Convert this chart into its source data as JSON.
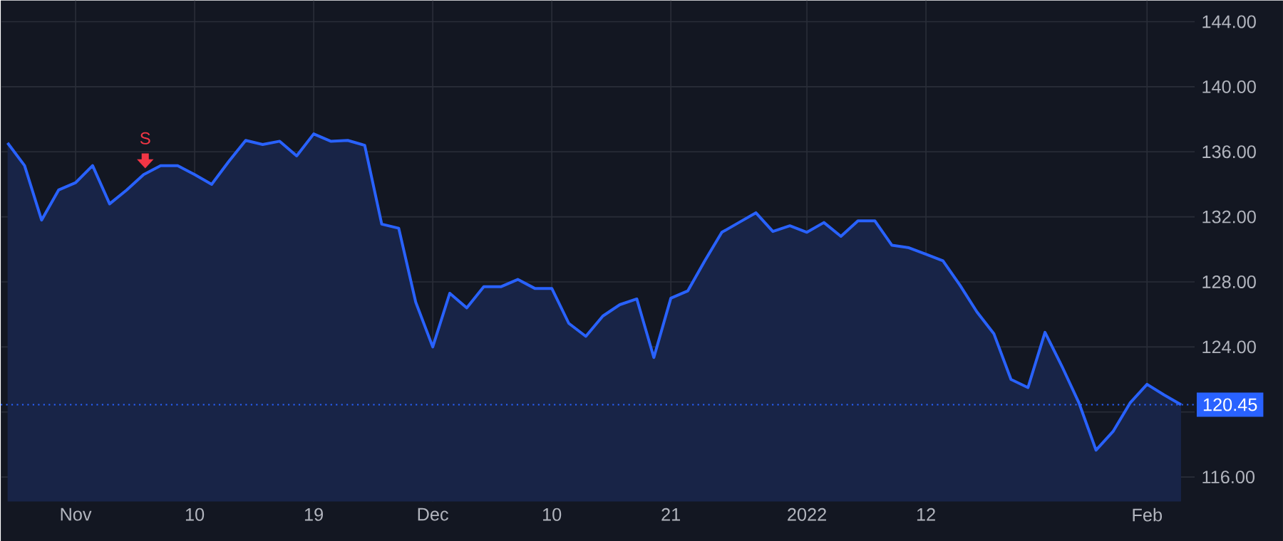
{
  "chart_data": {
    "type": "area",
    "color": "#2962ff",
    "categories": [
      null,
      null,
      null,
      null,
      "Nov",
      null,
      null,
      null,
      null,
      null,
      null,
      "10",
      null,
      null,
      null,
      null,
      null,
      null,
      "19",
      null,
      null,
      null,
      null,
      null,
      null,
      "Dec",
      null,
      null,
      null,
      null,
      null,
      null,
      "10",
      null,
      null,
      null,
      null,
      null,
      null,
      "21",
      null,
      null,
      null,
      null,
      null,
      null,
      null,
      "2022",
      null,
      null,
      null,
      null,
      null,
      null,
      "12",
      null,
      null,
      null,
      null,
      null,
      null,
      null,
      null,
      null,
      null,
      null,
      null,
      "Feb",
      null,
      null
    ],
    "values": [
      136.55,
      135.15,
      131.8,
      133.65,
      134.1,
      135.15,
      132.8,
      133.65,
      134.6,
      135.15,
      135.15,
      134.6,
      134.0,
      135.4,
      136.7,
      136.45,
      136.65,
      135.75,
      137.1,
      136.65,
      136.7,
      136.4,
      131.55,
      131.3,
      126.75,
      124.0,
      127.3,
      126.4,
      127.7,
      127.7,
      128.15,
      127.6,
      127.6,
      125.45,
      124.65,
      125.9,
      126.6,
      126.95,
      123.35,
      127.0,
      127.45,
      129.3,
      131.05,
      131.65,
      132.25,
      131.1,
      131.45,
      131.05,
      131.65,
      130.8,
      131.75,
      131.75,
      130.25,
      130.1,
      129.7,
      129.3,
      127.8,
      126.15,
      124.8,
      122.0,
      121.5,
      124.9,
      122.8,
      120.55,
      117.65,
      118.8,
      120.55,
      121.7,
      121.05,
      120.45
    ],
    "ylim": [
      114.5,
      145.3
    ],
    "yticks": [
      {
        "value": 116,
        "label": "116.00"
      },
      {
        "value": 120,
        "label": null
      },
      {
        "value": 124,
        "label": "124.00"
      },
      {
        "value": 128,
        "label": "128.00"
      },
      {
        "value": 132,
        "label": "132.00"
      },
      {
        "value": 136,
        "label": "136.00"
      },
      {
        "value": 140,
        "label": "140.00"
      },
      {
        "value": 144,
        "label": "144.00"
      }
    ],
    "grid": true,
    "marker": "none",
    "line_style": "solid",
    "ref_lines": [
      {
        "axis": "y",
        "value": 120.45,
        "label": "120.45",
        "color": "#2962ff",
        "line_style": "dotted"
      }
    ],
    "annotations": [
      "S"
    ]
  }
}
